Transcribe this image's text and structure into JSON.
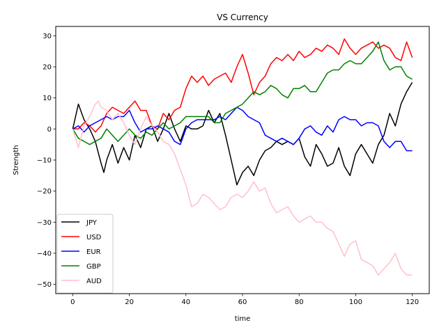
{
  "chart_data": {
    "type": "line",
    "title": "VS Currency",
    "xlabel": "time",
    "ylabel": "Strength",
    "xlim": [
      -6,
      126
    ],
    "ylim": [
      -53,
      33
    ],
    "xticks": [
      0,
      20,
      40,
      60,
      80,
      100,
      120
    ],
    "yticks": [
      -50,
      -40,
      -30,
      -20,
      -10,
      0,
      10,
      20,
      30
    ],
    "grid": false,
    "legend_position": "lower-left",
    "series": [
      {
        "name": "JPY",
        "color": "#000000",
        "x": [
          0,
          2,
          4,
          6,
          8,
          10,
          11,
          12,
          14,
          16,
          18,
          20,
          22,
          24,
          26,
          28,
          30,
          32,
          34,
          36,
          38,
          40,
          42,
          44,
          46,
          48,
          50,
          52,
          54,
          56,
          58,
          60,
          62,
          64,
          66,
          68,
          70,
          72,
          74,
          76,
          78,
          80,
          82,
          84,
          86,
          88,
          90,
          92,
          94,
          96,
          98,
          100,
          102,
          104,
          106,
          108,
          110,
          112,
          114,
          116,
          118,
          120
        ],
        "values": [
          0,
          8,
          3,
          0,
          -4,
          -11,
          -14,
          -10,
          -5,
          -11,
          -6,
          -10,
          -2,
          -6,
          0,
          1,
          -4,
          0,
          5,
          0,
          -4,
          1,
          0,
          0,
          1,
          6,
          2,
          5,
          -2,
          -10,
          -18,
          -14,
          -12,
          -15,
          -10,
          -7,
          -6,
          -4,
          -5,
          -4,
          -5,
          -3,
          -9,
          -12,
          -5,
          -8,
          -12,
          -11,
          -6,
          -12,
          -15,
          -8,
          -5,
          -8,
          -11,
          -5,
          -2,
          5,
          1,
          8,
          12,
          15
        ]
      },
      {
        "name": "USD",
        "color": "#ff0000",
        "x": [
          0,
          2,
          4,
          6,
          8,
          10,
          12,
          14,
          16,
          18,
          20,
          22,
          24,
          26,
          28,
          30,
          32,
          34,
          36,
          38,
          40,
          42,
          44,
          46,
          48,
          50,
          52,
          54,
          56,
          58,
          60,
          62,
          64,
          66,
          68,
          70,
          72,
          74,
          76,
          78,
          80,
          82,
          84,
          86,
          88,
          90,
          92,
          94,
          96,
          98,
          100,
          102,
          104,
          106,
          108,
          110,
          112,
          114,
          116,
          118,
          120
        ],
        "values": [
          0,
          0,
          2,
          1,
          -1,
          1,
          5,
          7,
          6,
          5,
          7,
          9,
          6,
          6,
          1,
          0,
          5,
          3,
          6,
          7,
          13,
          17,
          15,
          17,
          14,
          16,
          17,
          18,
          15,
          20,
          24,
          18,
          11,
          15,
          17,
          21,
          23,
          22,
          24,
          22,
          25,
          23,
          24,
          26,
          25,
          27,
          26,
          24,
          29,
          26,
          24,
          26,
          27,
          28,
          26,
          27,
          26,
          23,
          22,
          28,
          23
        ]
      },
      {
        "name": "EUR",
        "color": "#0000ff",
        "x": [
          0,
          2,
          4,
          6,
          8,
          10,
          12,
          14,
          16,
          18,
          20,
          22,
          24,
          26,
          28,
          30,
          32,
          34,
          36,
          38,
          40,
          42,
          44,
          46,
          48,
          50,
          52,
          54,
          56,
          58,
          60,
          62,
          64,
          66,
          68,
          70,
          72,
          74,
          76,
          78,
          80,
          82,
          84,
          86,
          88,
          90,
          92,
          94,
          96,
          98,
          100,
          102,
          104,
          106,
          108,
          110,
          112,
          114,
          116,
          118,
          120
        ],
        "values": [
          0,
          1,
          -1,
          1,
          2,
          3,
          4,
          3,
          4,
          4,
          6,
          2,
          -1,
          0,
          0,
          1,
          0,
          -1,
          -4,
          -5,
          0,
          2,
          3,
          3,
          3,
          3,
          4,
          3,
          5,
          7,
          6,
          4,
          3,
          2,
          -2,
          -3,
          -4,
          -3,
          -4,
          -5,
          -3,
          0,
          1,
          -1,
          -2,
          1,
          -1,
          3,
          4,
          3,
          3,
          1,
          2,
          2,
          1,
          -4,
          -6,
          -4,
          -4,
          -7,
          -7
        ]
      },
      {
        "name": "GBP",
        "color": "#008000",
        "x": [
          0,
          2,
          4,
          6,
          8,
          10,
          12,
          14,
          16,
          18,
          20,
          22,
          24,
          26,
          28,
          30,
          32,
          34,
          36,
          38,
          40,
          42,
          44,
          46,
          48,
          50,
          52,
          54,
          56,
          58,
          60,
          62,
          64,
          66,
          68,
          70,
          72,
          74,
          76,
          78,
          80,
          82,
          84,
          86,
          88,
          90,
          92,
          94,
          96,
          98,
          100,
          102,
          104,
          106,
          108,
          110,
          112,
          114,
          116,
          118,
          120
        ],
        "values": [
          0,
          -3,
          -4,
          -5,
          -4,
          -3,
          0,
          -2,
          -4,
          -2,
          0,
          -2,
          -3,
          -1,
          -2,
          0,
          2,
          0,
          1,
          2,
          4,
          4,
          4,
          4,
          4,
          2,
          2,
          5,
          6,
          7,
          8,
          10,
          12,
          11,
          12,
          14,
          13,
          11,
          10,
          13,
          13,
          14,
          12,
          12,
          15,
          18,
          19,
          19,
          21,
          22,
          21,
          21,
          23,
          25,
          28,
          22,
          19,
          20,
          20,
          17,
          16
        ]
      },
      {
        "name": "AUD",
        "color": "#ffc0cb",
        "x": [
          0,
          1,
          2,
          4,
          6,
          8,
          9,
          10,
          12,
          14,
          16,
          18,
          20,
          22,
          24,
          26,
          28,
          30,
          32,
          34,
          36,
          38,
          40,
          42,
          44,
          46,
          48,
          50,
          52,
          54,
          56,
          58,
          60,
          62,
          64,
          66,
          68,
          70,
          72,
          74,
          76,
          78,
          80,
          82,
          84,
          86,
          88,
          90,
          92,
          94,
          96,
          98,
          100,
          102,
          104,
          106,
          108,
          110,
          112,
          114,
          116,
          118,
          120
        ],
        "values": [
          0,
          -3,
          -6,
          1,
          4,
          8,
          9,
          7,
          6,
          3,
          5,
          2,
          -2,
          -5,
          0,
          4,
          1,
          -1,
          -4,
          -5,
          -8,
          -13,
          -18,
          -25,
          -24,
          -21,
          -22,
          -24,
          -26,
          -25,
          -22,
          -21,
          -22,
          -20,
          -17,
          -20,
          -19,
          -24,
          -27,
          -26,
          -25,
          -28,
          -30,
          -29,
          -28,
          -30,
          -30,
          -32,
          -33,
          -37,
          -41,
          -37,
          -36,
          -42,
          -43,
          -44,
          -47,
          -45,
          -43,
          -40,
          -45,
          -47,
          -47
        ]
      }
    ]
  }
}
